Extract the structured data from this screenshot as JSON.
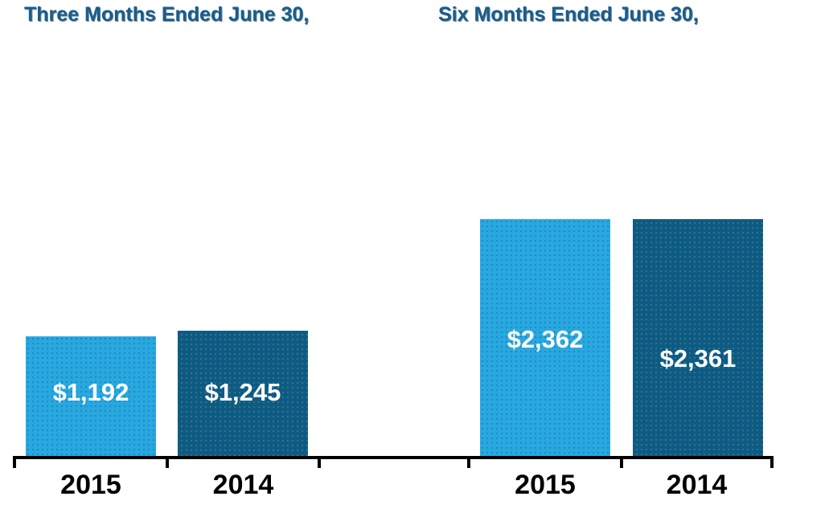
{
  "chart_data": {
    "type": "bar",
    "grid": false,
    "legend": "none",
    "baseline": 0,
    "ylim": [
      0,
      2500
    ],
    "groups": [
      {
        "title": "Three Months Ended June 30,",
        "categories": [
          "2015",
          "2014"
        ],
        "values": [
          1192,
          1245
        ],
        "value_labels": [
          "$1,192",
          "$1,245"
        ]
      },
      {
        "title": "Six Months Ended June 30,",
        "categories": [
          "2015",
          "2014"
        ],
        "values": [
          2362,
          2361
        ],
        "value_labels": [
          "$2,362",
          "$2,361"
        ]
      }
    ],
    "series_colors": {
      "s2015": "#29A8E0",
      "s2014": "#0D5A85"
    },
    "colors": {
      "group_title": "#155E8E",
      "value_label": "#FFFFFF",
      "category_label": "#000000",
      "axis": "#000000",
      "background": "#FFFFFF"
    }
  }
}
